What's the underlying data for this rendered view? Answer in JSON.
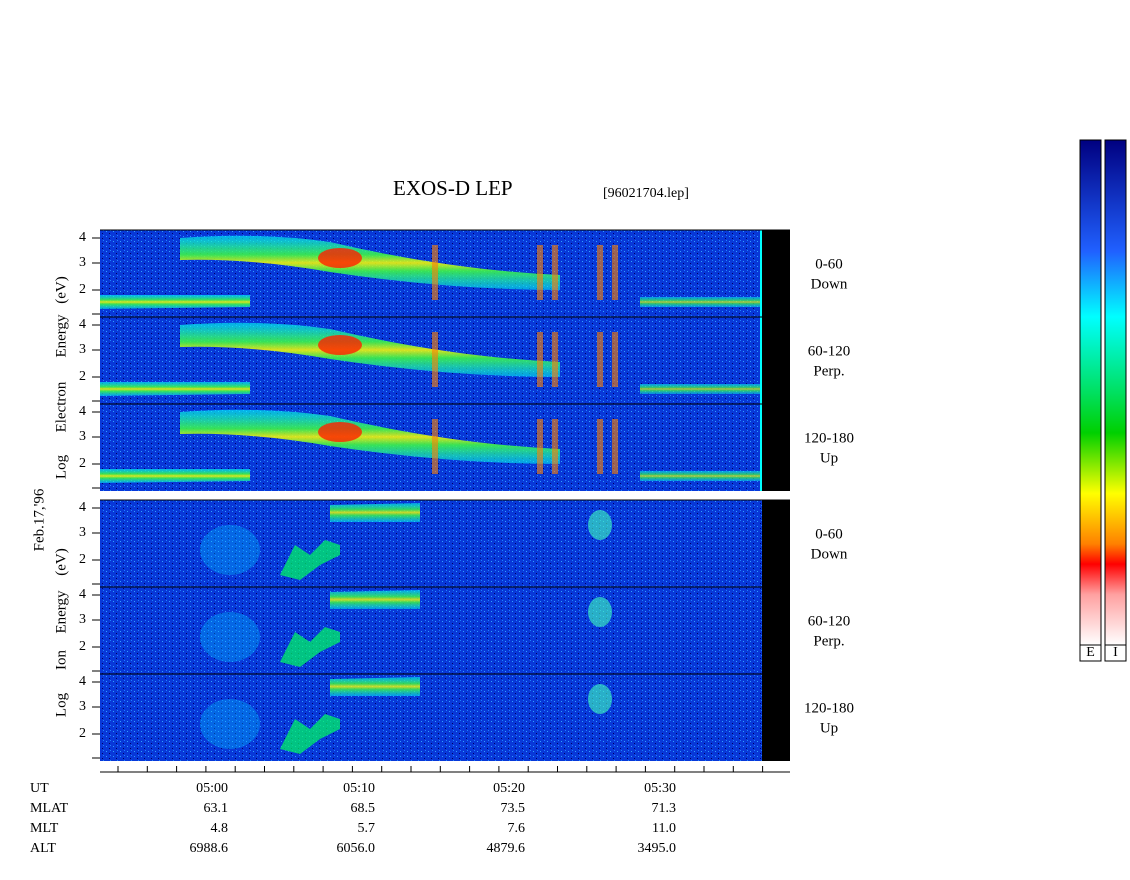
{
  "header": {
    "title": "EXOS-D LEP",
    "file": "[96021704.lep]",
    "date": "Feb.17,'96"
  },
  "electron_axis": {
    "log": "Log",
    "species": "Electron",
    "energy": "Energy",
    "unit": "(eV)"
  },
  "ion_axis": {
    "log": "Log",
    "species": "Ion",
    "energy": "Energy",
    "unit": "(eV)"
  },
  "y_ticks": [
    "2",
    "3",
    "4"
  ],
  "panels": [
    {
      "angle": "0-60",
      "direction": "Down"
    },
    {
      "angle": "60-120",
      "direction": "Perp."
    },
    {
      "angle": "120-180",
      "direction": "Up"
    },
    {
      "angle": "0-60",
      "direction": "Down"
    },
    {
      "angle": "60-120",
      "direction": "Perp."
    },
    {
      "angle": "120-180",
      "direction": "Up"
    }
  ],
  "ephemeris": {
    "labels": [
      "UT",
      "MLAT",
      "MLT",
      "ALT"
    ],
    "rows": [
      [
        "05:00",
        "05:10",
        "05:20",
        "05:30"
      ],
      [
        "63.1",
        "68.5",
        "73.5",
        "71.3"
      ],
      [
        "4.8",
        "5.7",
        "7.6",
        "11.0"
      ],
      [
        "6988.6",
        "6056.0",
        "4879.6",
        "3495.0"
      ]
    ]
  },
  "colorbars": [
    "E",
    "I"
  ]
}
